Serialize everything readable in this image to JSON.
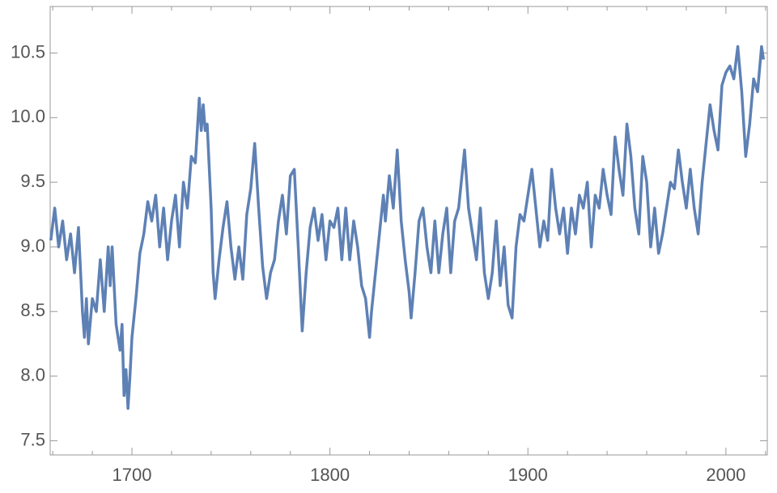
{
  "chart_data": {
    "type": "line",
    "xlim": [
      1658.7,
      2020.9
    ],
    "ylim": [
      7.39,
      10.86
    ],
    "xticks": [
      1700,
      1800,
      1900,
      2000
    ],
    "xminorticks": [
      1660,
      1680,
      1720,
      1740,
      1760,
      1780,
      1820,
      1840,
      1860,
      1880,
      1920,
      1940,
      1960,
      1980,
      2020
    ],
    "yticks": [
      {
        "value": 7.5,
        "label": "7.5"
      },
      {
        "value": 8,
        "label": "8.0"
      },
      {
        "value": 8.5,
        "label": "8.5"
      },
      {
        "value": 9,
        "label": "9.0"
      },
      {
        "value": 9.5,
        "label": "9.5"
      },
      {
        "value": 10,
        "label": "10.0"
      },
      {
        "value": 10.5,
        "label": "10.5"
      }
    ],
    "series": [
      {
        "color": "#5e81b5",
        "x": [
          1659,
          1661,
          1663,
          1665,
          1667,
          1669,
          1671,
          1673,
          1675,
          1676,
          1677,
          1678,
          1680,
          1682,
          1684,
          1686,
          1688,
          1689,
          1690,
          1692,
          1694,
          1695,
          1696,
          1697,
          1698,
          1699,
          1700,
          1702,
          1704,
          1706,
          1708,
          1710,
          1712,
          1714,
          1716,
          1718,
          1720,
          1722,
          1724,
          1726,
          1728,
          1730,
          1732,
          1734,
          1735,
          1736,
          1737,
          1738,
          1740,
          1741,
          1742,
          1744,
          1746,
          1748,
          1750,
          1752,
          1754,
          1756,
          1758,
          1760,
          1762,
          1764,
          1766,
          1768,
          1770,
          1772,
          1774,
          1776,
          1778,
          1780,
          1782,
          1784,
          1786,
          1788,
          1790,
          1792,
          1794,
          1796,
          1798,
          1800,
          1802,
          1804,
          1806,
          1808,
          1810,
          1812,
          1814,
          1816,
          1818,
          1820,
          1821,
          1823,
          1825,
          1827,
          1828,
          1830,
          1832,
          1834,
          1836,
          1838,
          1840,
          1841,
          1843,
          1845,
          1847,
          1849,
          1851,
          1853,
          1855,
          1857,
          1859,
          1861,
          1863,
          1865,
          1867,
          1868,
          1870,
          1872,
          1874,
          1876,
          1878,
          1880,
          1882,
          1884,
          1886,
          1888,
          1890,
          1892,
          1894,
          1896,
          1898,
          1900,
          1902,
          1904,
          1906,
          1908,
          1910,
          1912,
          1914,
          1916,
          1918,
          1920,
          1922,
          1924,
          1926,
          1928,
          1930,
          1932,
          1934,
          1936,
          1938,
          1940,
          1942,
          1944,
          1946,
          1948,
          1950,
          1952,
          1954,
          1956,
          1958,
          1960,
          1962,
          1964,
          1966,
          1968,
          1970,
          1972,
          1974,
          1976,
          1978,
          1980,
          1982,
          1984,
          1986,
          1988,
          1990,
          1992,
          1994,
          1996,
          1998,
          2000,
          2002,
          2004,
          2006,
          2008,
          2010,
          2012,
          2014,
          2016,
          2018,
          2019
        ],
        "values": [
          9.05,
          9.3,
          9.0,
          9.2,
          8.9,
          9.1,
          8.8,
          9.15,
          8.5,
          8.3,
          8.6,
          8.25,
          8.6,
          8.5,
          8.9,
          8.5,
          9.0,
          8.7,
          9.0,
          8.4,
          8.2,
          8.4,
          7.85,
          8.05,
          7.75,
          8.0,
          8.3,
          8.6,
          8.95,
          9.1,
          9.35,
          9.2,
          9.4,
          9.0,
          9.3,
          8.9,
          9.2,
          9.4,
          9.0,
          9.5,
          9.3,
          9.7,
          9.65,
          10.15,
          9.9,
          10.1,
          9.9,
          9.95,
          9.3,
          8.8,
          8.6,
          8.9,
          9.15,
          9.35,
          9.0,
          8.75,
          9.0,
          8.75,
          9.25,
          9.45,
          9.8,
          9.3,
          8.85,
          8.6,
          8.8,
          8.9,
          9.2,
          9.4,
          9.1,
          9.55,
          9.6,
          9.0,
          8.35,
          8.8,
          9.15,
          9.3,
          9.05,
          9.25,
          8.9,
          9.2,
          9.15,
          9.3,
          8.9,
          9.3,
          8.9,
          9.2,
          9.0,
          8.7,
          8.6,
          8.3,
          8.5,
          8.8,
          9.1,
          9.4,
          9.2,
          9.55,
          9.3,
          9.75,
          9.2,
          8.9,
          8.65,
          8.45,
          8.8,
          9.2,
          9.3,
          9.0,
          8.8,
          9.2,
          8.8,
          9.1,
          9.3,
          8.8,
          9.2,
          9.3,
          9.6,
          9.75,
          9.3,
          9.1,
          8.9,
          9.3,
          8.8,
          8.6,
          8.8,
          9.2,
          8.7,
          9.0,
          8.55,
          8.45,
          9.0,
          9.25,
          9.2,
          9.4,
          9.6,
          9.3,
          9.0,
          9.2,
          9.05,
          9.6,
          9.3,
          9.1,
          9.3,
          8.95,
          9.3,
          9.1,
          9.4,
          9.3,
          9.5,
          9.0,
          9.4,
          9.3,
          9.6,
          9.4,
          9.25,
          9.85,
          9.6,
          9.4,
          9.95,
          9.7,
          9.3,
          9.1,
          9.7,
          9.5,
          9.0,
          9.3,
          8.95,
          9.1,
          9.3,
          9.5,
          9.45,
          9.75,
          9.5,
          9.3,
          9.6,
          9.3,
          9.1,
          9.5,
          9.8,
          10.1,
          9.9,
          9.75,
          10.25,
          10.35,
          10.4,
          10.3,
          10.55,
          10.2,
          9.7,
          9.95,
          10.3,
          10.2,
          10.55,
          10.45
        ]
      }
    ]
  }
}
